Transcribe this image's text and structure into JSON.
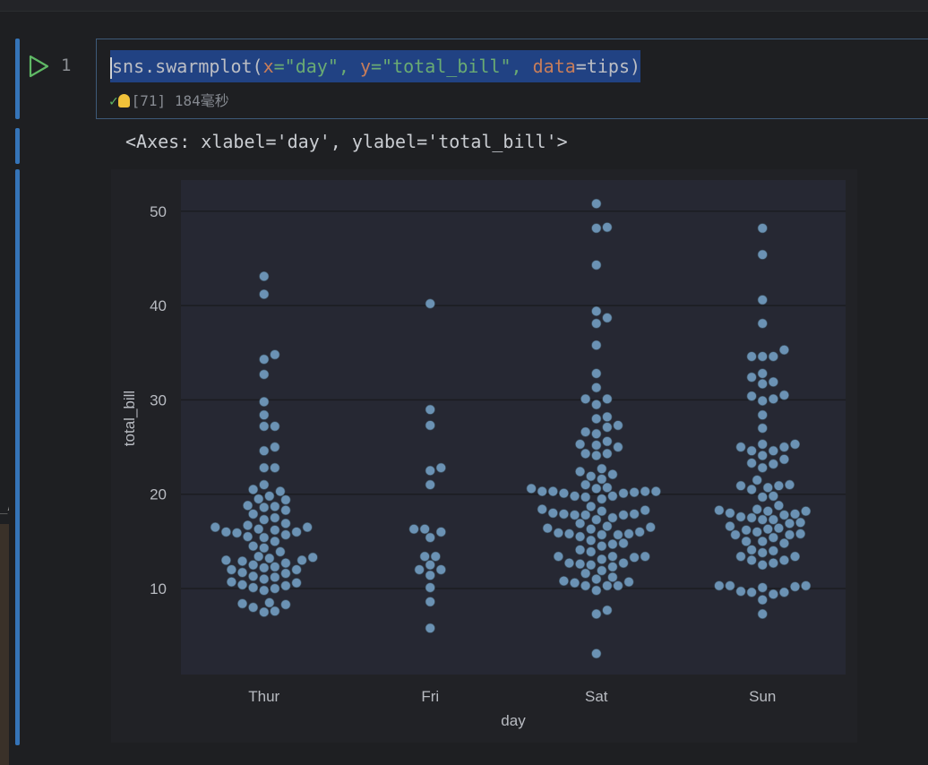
{
  "cell": {
    "line_number": "1",
    "code": {
      "t1": "sns.swarmplot(",
      "t2": "x",
      "t3": "=\"day\", ",
      "t4": "y",
      "t5": "=\"total_bill\", ",
      "t6": "data",
      "t7": "=tips)"
    },
    "exec_count": "[71]",
    "exec_time": "184毫秒"
  },
  "output": {
    "text": "<Axes: xlabel='day', ylabel='total_bill'>"
  },
  "colors": {
    "point": "#6b92b4",
    "plot_bg": "#262833",
    "accent": "#3574b8"
  },
  "chart_data": {
    "type": "scatter",
    "title": "",
    "xlabel": "day",
    "ylabel": "total_bill",
    "categories": [
      "Thur",
      "Fri",
      "Sat",
      "Sun"
    ],
    "y_ticks": [
      10,
      20,
      30,
      40,
      50
    ],
    "ylim": [
      0,
      53
    ],
    "grid": true,
    "series": [
      {
        "category": "Thur",
        "values": [
          43.1,
          41.2,
          34.8,
          34.3,
          32.7,
          29.8,
          28.4,
          27.2,
          27.2,
          25.0,
          24.6,
          22.8,
          22.8,
          21.0,
          20.5,
          20.3,
          19.8,
          19.5,
          19.4,
          18.8,
          18.7,
          18.6,
          18.3,
          17.9,
          17.5,
          17.3,
          16.9,
          16.7,
          16.5,
          16.5,
          16.3,
          16.2,
          16.0,
          16.0,
          15.9,
          15.7,
          15.5,
          15.4,
          15.0,
          14.5,
          14.3,
          13.9,
          13.4,
          13.3,
          13.2,
          13.0,
          13.0,
          12.9,
          12.7,
          12.5,
          12.3,
          12.2,
          12.0,
          12.0,
          11.7,
          11.6,
          11.3,
          11.2,
          11.0,
          10.7,
          10.6,
          10.4,
          10.3,
          10.1,
          10.0,
          9.8,
          8.5,
          8.4,
          8.3,
          8.0,
          7.6,
          7.5
        ]
      },
      {
        "category": "Fri",
        "values": [
          40.2,
          28.97,
          27.3,
          22.8,
          22.5,
          21.0,
          16.3,
          16.3,
          16.0,
          15.4,
          13.4,
          13.4,
          12.5,
          12.0,
          12.0,
          11.4,
          10.1,
          8.6,
          5.8
        ]
      },
      {
        "category": "Sat",
        "values": [
          50.8,
          48.3,
          48.2,
          44.3,
          39.4,
          38.7,
          38.1,
          35.8,
          32.8,
          31.3,
          30.1,
          30.1,
          29.5,
          28.2,
          28.0,
          27.3,
          27.1,
          26.6,
          26.4,
          25.6,
          25.3,
          25.2,
          25.0,
          24.3,
          24.3,
          24.1,
          22.7,
          22.4,
          22.1,
          21.9,
          21.6,
          21.0,
          20.7,
          20.6,
          20.6,
          20.3,
          20.3,
          20.3,
          20.3,
          20.2,
          20.1,
          20.1,
          19.8,
          19.8,
          19.7,
          19.5,
          18.7,
          18.4,
          18.3,
          18.2,
          18.0,
          17.9,
          17.9,
          17.8,
          17.8,
          17.8,
          17.5,
          17.3,
          16.9,
          16.6,
          16.5,
          16.4,
          16.3,
          16.0,
          15.9,
          15.8,
          15.8,
          15.7,
          15.7,
          15.5,
          15.1,
          14.8,
          14.7,
          14.5,
          14.1,
          13.9,
          13.4,
          13.4,
          13.4,
          13.3,
          13.1,
          12.7,
          12.7,
          12.6,
          12.5,
          12.3,
          11.9,
          11.6,
          11.2,
          11.0,
          10.8,
          10.7,
          10.6,
          10.3,
          10.3,
          10.3,
          9.8,
          7.7,
          7.3,
          3.1
        ]
      },
      {
        "category": "Sun",
        "values": [
          48.2,
          45.4,
          40.6,
          38.1,
          35.3,
          34.6,
          34.6,
          34.6,
          32.8,
          32.4,
          31.9,
          31.7,
          30.5,
          30.4,
          30.1,
          29.9,
          28.4,
          27.0,
          25.3,
          25.3,
          25.0,
          25.0,
          24.6,
          24.6,
          24.1,
          23.7,
          23.3,
          23.2,
          22.8,
          21.5,
          21.0,
          20.9,
          20.9,
          20.7,
          20.5,
          19.8,
          19.7,
          18.8,
          18.4,
          18.3,
          18.2,
          18.2,
          18.0,
          17.9,
          17.8,
          17.6,
          17.5,
          17.3,
          17.3,
          17.0,
          16.9,
          16.6,
          16.4,
          16.3,
          16.2,
          16.0,
          15.8,
          15.7,
          15.7,
          15.4,
          15.0,
          15.0,
          14.8,
          14.1,
          14.0,
          13.8,
          13.4,
          13.4,
          13.0,
          13.0,
          12.7,
          12.5,
          10.3,
          10.3,
          10.3,
          10.2,
          10.1,
          9.7,
          9.6,
          9.6,
          9.4,
          8.8,
          7.3
        ]
      }
    ]
  }
}
